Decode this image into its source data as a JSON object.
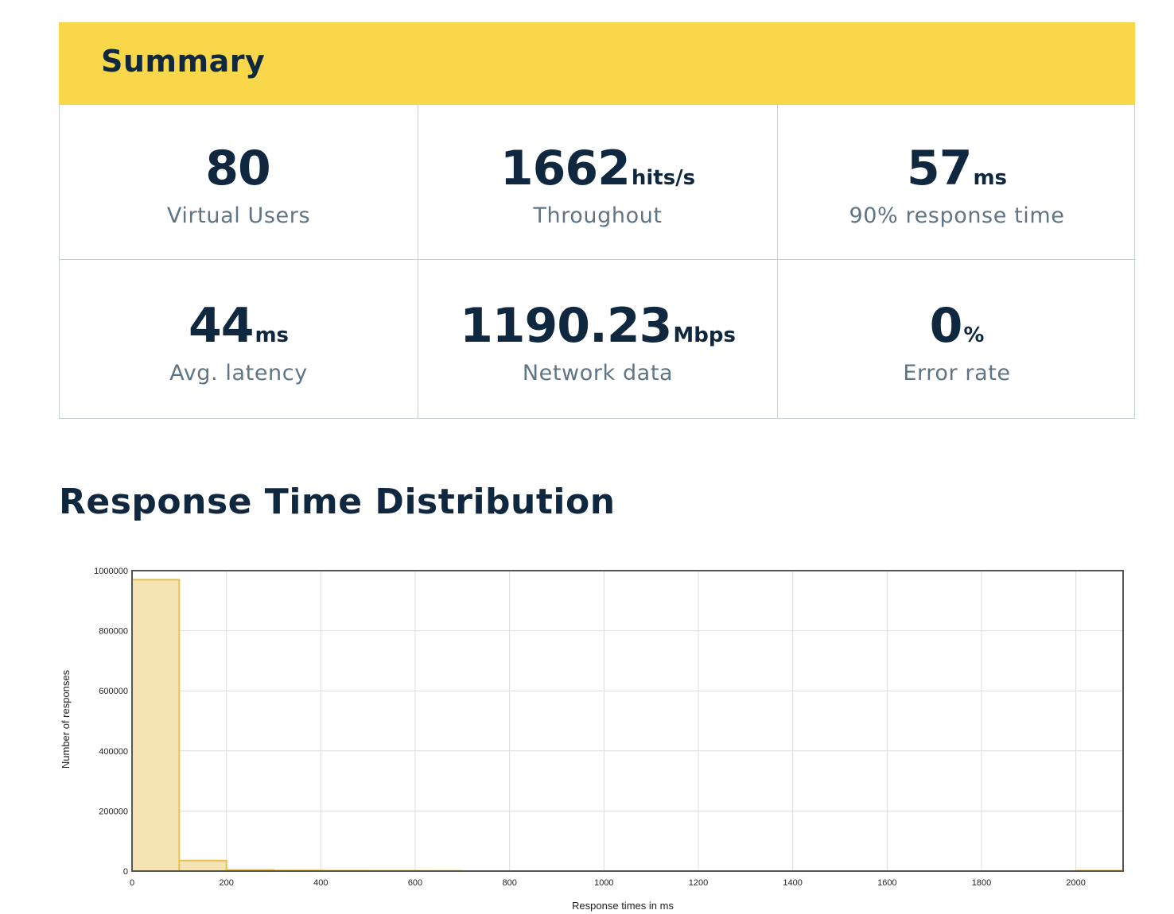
{
  "summary": {
    "title": "Summary",
    "metrics": [
      {
        "value": "80",
        "unit": "",
        "label": "Virtual Users"
      },
      {
        "value": "1662",
        "unit": "hits/s",
        "label": "Throughout"
      },
      {
        "value": "57",
        "unit": "ms",
        "label": "90% response time"
      },
      {
        "value": "44",
        "unit": "ms",
        "label": "Avg. latency"
      },
      {
        "value": "1190.23",
        "unit": "Mbps",
        "label": "Network data"
      },
      {
        "value": "0",
        "unit": "%",
        "label": "Error rate"
      }
    ]
  },
  "distribution": {
    "title": "Response Time Distribution"
  },
  "colors": {
    "accent": "#f8d74a",
    "bar_fill": "#f4e4b4",
    "bar_stroke": "#e8c24a",
    "text_dark": "#0f2840",
    "text_muted": "#5f7484"
  },
  "chart_data": {
    "type": "bar",
    "xlabel": "Response times in ms",
    "ylabel": "Number of responses",
    "xlim": [
      0,
      2100
    ],
    "ylim": [
      0,
      1000000
    ],
    "x_ticks": [
      0,
      200,
      400,
      600,
      800,
      1000,
      1200,
      1400,
      1600,
      1800,
      2000
    ],
    "y_ticks": [
      0,
      200000,
      400000,
      600000,
      800000,
      1000000
    ],
    "bin_width": 100,
    "bins": [
      {
        "x": 0,
        "value": 970000
      },
      {
        "x": 100,
        "value": 35000
      },
      {
        "x": 200,
        "value": 4000
      },
      {
        "x": 300,
        "value": 2000
      },
      {
        "x": 400,
        "value": 1500
      },
      {
        "x": 500,
        "value": 1200
      },
      {
        "x": 600,
        "value": 800
      },
      {
        "x": 2000,
        "value": 1500
      }
    ],
    "grid": true
  }
}
